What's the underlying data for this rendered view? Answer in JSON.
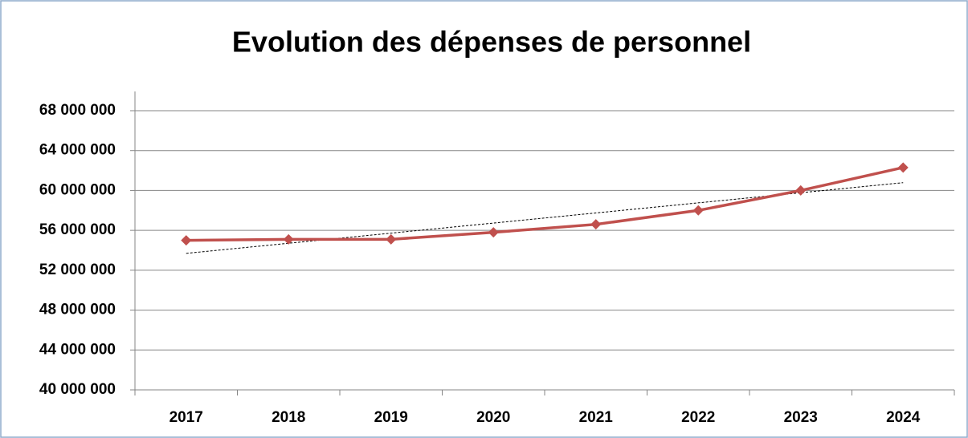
{
  "chart_data": {
    "type": "line",
    "title": "Evolution des dépenses de personnel",
    "categories": [
      "2017",
      "2018",
      "2019",
      "2020",
      "2021",
      "2022",
      "2023",
      "2024"
    ],
    "series": [
      {
        "name": "Dépenses de personnel",
        "color": "#c0504d",
        "values": [
          55000000,
          55100000,
          55100000,
          55800000,
          56600000,
          58000000,
          60000000,
          62300000
        ]
      }
    ],
    "trendline": "linear",
    "ylim": [
      40000000,
      68000000
    ],
    "yticks": [
      {
        "value": 40000000,
        "label": "40 000 000"
      },
      {
        "value": 44000000,
        "label": "44 000 000"
      },
      {
        "value": 48000000,
        "label": "48 000 000"
      },
      {
        "value": 52000000,
        "label": "52 000 000"
      },
      {
        "value": 56000000,
        "label": "56 000 000"
      },
      {
        "value": 60000000,
        "label": "60 000 000"
      },
      {
        "value": 64000000,
        "label": "64 000 000"
      },
      {
        "value": 68000000,
        "label": "68 000 000"
      }
    ],
    "grid": true
  }
}
